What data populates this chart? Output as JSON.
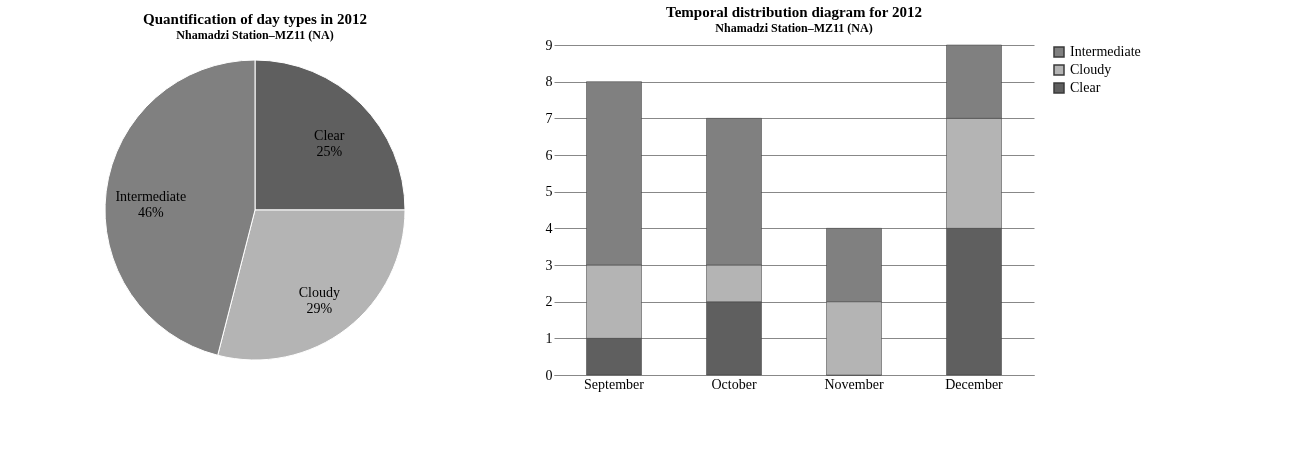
{
  "chart_data": [
    {
      "type": "pie",
      "title": "Quantification of day types in 2012",
      "subtitle": "Nhamadzi Station–MZ11 (NA)",
      "categories": [
        "Clear",
        "Cloudy",
        "Intermediate"
      ],
      "values": [
        25,
        29,
        46
      ],
      "value_labels": [
        "25%",
        "29%",
        "46%"
      ],
      "colors": [
        "#5f5f5f",
        "#b4b4b4",
        "#808080"
      ],
      "legend": false
    },
    {
      "type": "bar",
      "title": "Temporal distribution diagram for 2012",
      "subtitle": "Nhamadzi Station–MZ11 (NA)",
      "categories": [
        "September",
        "October",
        "November",
        "December"
      ],
      "stacked": true,
      "ylim": [
        0,
        9
      ],
      "yticks": [
        0,
        1,
        2,
        3,
        4,
        5,
        6,
        7,
        8,
        9
      ],
      "grid": "y",
      "legend": "right",
      "series": [
        {
          "name": "Clear",
          "color": "#5f5f5f",
          "values": [
            1,
            2,
            0,
            4
          ]
        },
        {
          "name": "Cloudy",
          "color": "#b4b4b4",
          "values": [
            2,
            1,
            2,
            3
          ]
        },
        {
          "name": "Intermediate",
          "color": "#808080",
          "values": [
            5,
            4,
            2,
            2
          ]
        }
      ]
    }
  ]
}
